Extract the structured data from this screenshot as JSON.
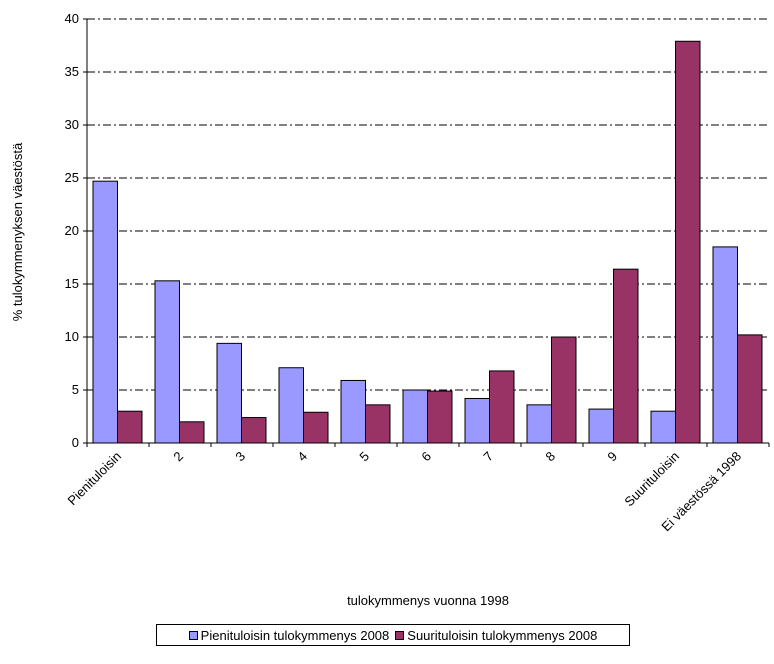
{
  "chart_data": {
    "type": "bar",
    "xlabel": "tulokymmenys vuonna 1998",
    "ylabel": "% tulokymmenyksen väestöstä",
    "ylim": [
      0,
      40
    ],
    "yticks": [
      0,
      5,
      10,
      15,
      20,
      25,
      30,
      35,
      40
    ],
    "grid": true,
    "legend_position": "bottom",
    "categories": [
      "Pienituloisin",
      "2",
      "3",
      "4",
      "5",
      "6",
      "7",
      "8",
      "9",
      "Suurituloisin",
      "Ei väestössä 1998"
    ],
    "series": [
      {
        "name": "Pienituloisin tulokymmenys 2008",
        "color": "#9999ff",
        "values": [
          24.7,
          15.3,
          9.4,
          7.1,
          5.9,
          5.0,
          4.2,
          3.6,
          3.2,
          3.0,
          18.5
        ]
      },
      {
        "name": "Suurituloisin tulokymmenys 2008",
        "color": "#993366",
        "values": [
          3.0,
          2.0,
          2.4,
          2.9,
          3.6,
          4.9,
          6.8,
          10.0,
          16.4,
          37.9,
          10.2
        ]
      }
    ]
  }
}
